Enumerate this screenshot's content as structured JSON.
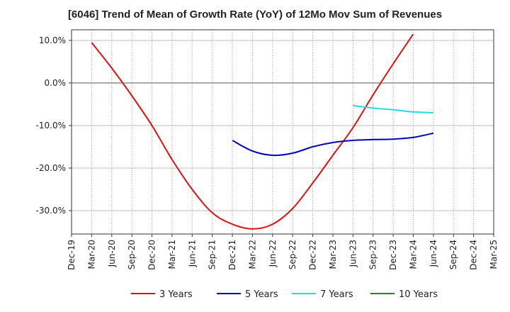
{
  "chart_data": {
    "type": "line",
    "title": "[6046]  Trend of Mean of Growth Rate (YoY) of 12Mo Mov Sum of Revenues",
    "xlabel": "",
    "ylabel": "",
    "ylim": [
      -35.5,
      12.5
    ],
    "y_ticks": [
      10,
      0,
      -10,
      -20,
      -30
    ],
    "y_tick_labels": [
      "10.0%",
      "0.0%",
      "-10.0%",
      "-20.0%",
      "-30.0%"
    ],
    "x_tick_labels": [
      "Dec-19",
      "Mar-20",
      "Jun-20",
      "Sep-20",
      "Dec-20",
      "Mar-21",
      "Jun-21",
      "Sep-21",
      "Dec-21",
      "Mar-22",
      "Jun-22",
      "Sep-22",
      "Dec-22",
      "Mar-23",
      "Jun-23",
      "Sep-23",
      "Dec-23",
      "Mar-24",
      "Jun-24",
      "Sep-24",
      "Dec-24",
      "Mar-25"
    ],
    "grid": true,
    "legend_position": "bottom",
    "series": [
      {
        "name": "3 Years",
        "color": "#dd1111",
        "points": [
          [
            1,
            9.5
          ],
          [
            2,
            3.5
          ],
          [
            3,
            -3
          ],
          [
            4,
            -10
          ],
          [
            5,
            -18
          ],
          [
            6,
            -25
          ],
          [
            7,
            -30.5
          ],
          [
            8,
            -33.2
          ],
          [
            9,
            -34.3
          ],
          [
            10,
            -33.2
          ],
          [
            11,
            -29.5
          ],
          [
            12,
            -23.5
          ],
          [
            13,
            -17
          ],
          [
            14,
            -10.5
          ],
          [
            15,
            -2.8
          ],
          [
            16,
            4.5
          ],
          [
            17,
            11.5
          ]
        ]
      },
      {
        "name": "5 Years",
        "color": "#0000bb",
        "points": [
          [
            8,
            -13.5
          ],
          [
            9,
            -16
          ],
          [
            10,
            -17
          ],
          [
            11,
            -16.5
          ],
          [
            12,
            -15
          ],
          [
            13,
            -14
          ],
          [
            14,
            -13.5
          ],
          [
            15,
            -13.3
          ],
          [
            16,
            -13.2
          ],
          [
            17,
            -12.8
          ],
          [
            18,
            -11.8
          ]
        ]
      },
      {
        "name": "7 Years",
        "color": "#22dddd",
        "points": [
          [
            14,
            -5.3
          ],
          [
            15,
            -5.9
          ],
          [
            16,
            -6.3
          ],
          [
            17,
            -6.8
          ],
          [
            18,
            -7
          ]
        ]
      },
      {
        "name": "10 Years",
        "color": "#228822",
        "points": []
      }
    ]
  }
}
